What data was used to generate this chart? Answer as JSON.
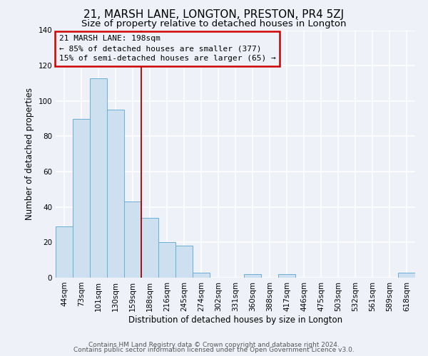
{
  "title": "21, MARSH LANE, LONGTON, PRESTON, PR4 5ZJ",
  "subtitle": "Size of property relative to detached houses in Longton",
  "xlabel": "Distribution of detached houses by size in Longton",
  "ylabel": "Number of detached properties",
  "bar_labels": [
    "44sqm",
    "73sqm",
    "101sqm",
    "130sqm",
    "159sqm",
    "188sqm",
    "216sqm",
    "245sqm",
    "274sqm",
    "302sqm",
    "331sqm",
    "360sqm",
    "388sqm",
    "417sqm",
    "446sqm",
    "475sqm",
    "503sqm",
    "532sqm",
    "561sqm",
    "589sqm",
    "618sqm"
  ],
  "bar_values": [
    29,
    90,
    113,
    95,
    43,
    34,
    20,
    18,
    3,
    0,
    0,
    2,
    0,
    2,
    0,
    0,
    0,
    0,
    0,
    0,
    3
  ],
  "bar_color": "#cde0f0",
  "bar_edge_color": "#6aaed6",
  "vline_color": "#aa0000",
  "annotation_lines": [
    "21 MARSH LANE: 198sqm",
    "← 85% of detached houses are smaller (377)",
    "15% of semi-detached houses are larger (65) →"
  ],
  "annotation_box_color": "#cc0000",
  "ylim": [
    0,
    140
  ],
  "yticks": [
    0,
    20,
    40,
    60,
    80,
    100,
    120,
    140
  ],
  "footer_lines": [
    "Contains HM Land Registry data © Crown copyright and database right 2024.",
    "Contains public sector information licensed under the Open Government Licence v3.0."
  ],
  "background_color": "#eef2f8",
  "grid_color": "#ffffff",
  "title_fontsize": 11,
  "subtitle_fontsize": 9.5,
  "axis_label_fontsize": 8.5,
  "tick_fontsize": 7.5,
  "annotation_fontsize": 8,
  "footer_fontsize": 6.5
}
